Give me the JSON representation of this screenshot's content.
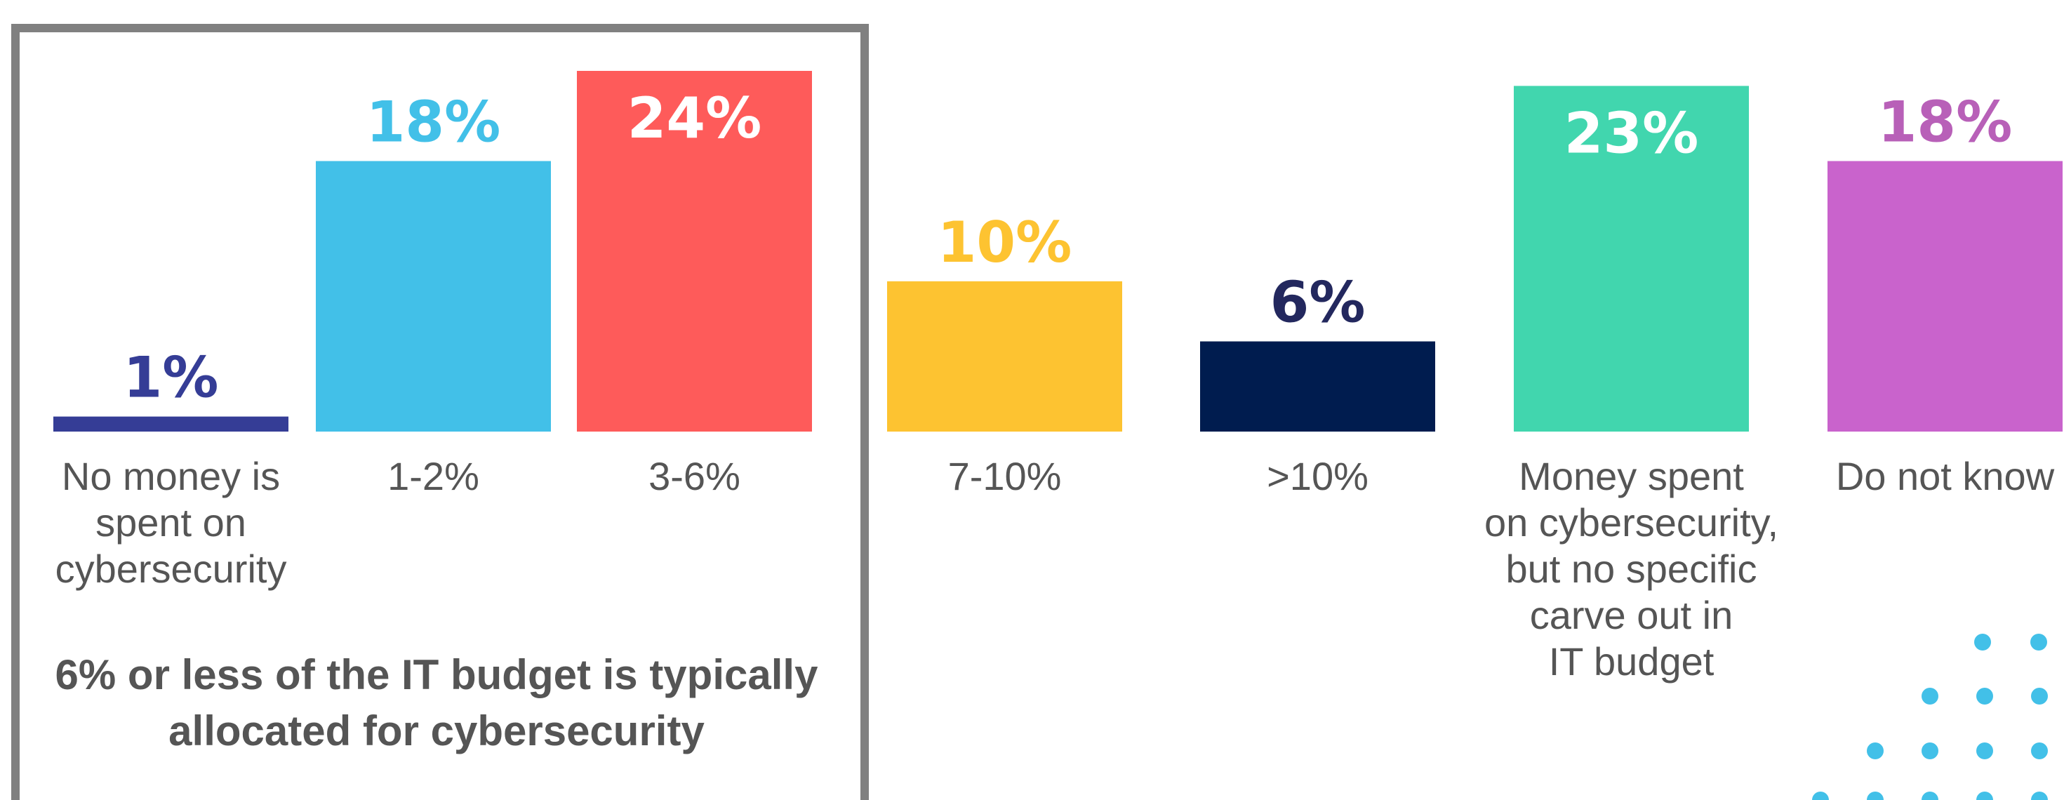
{
  "chart_data": {
    "type": "bar",
    "categories": [
      "No money is spent on cybersecurity",
      "1-2%",
      "3-6%",
      "7-10%",
      ">10%",
      "Money spent on cybersecurity, but no specific carve out in IT budget",
      "Do not know"
    ],
    "category_lines": [
      [
        "No money is",
        "spent on",
        "cybersecurity"
      ],
      [
        "1-2%"
      ],
      [
        "3-6%"
      ],
      [
        "7-10%"
      ],
      [
        ">10%"
      ],
      [
        "Money spent",
        "on cybersecurity,",
        "but no specific",
        "carve out in",
        "IT budget"
      ],
      [
        "Do not know"
      ]
    ],
    "values": [
      1,
      18,
      24,
      10,
      6,
      23,
      18
    ],
    "data_labels": [
      "1%",
      "18%",
      "24%",
      "10%",
      "6%",
      "23%",
      "18%"
    ],
    "colors": [
      "#353d96",
      "#42c0e8",
      "#fe5b5a",
      "#fdc331",
      "#001c4f",
      "#41d6ae",
      "#c963cc"
    ],
    "label_colors": [
      "#353d96",
      "#42c0e8",
      "#ffffff",
      "#fdc331",
      "#23285e",
      "#ffffff",
      "#b860b8"
    ],
    "label_inside": [
      false,
      false,
      true,
      false,
      false,
      true,
      false
    ],
    "ylim": [
      0,
      24
    ],
    "grid": false,
    "legend": "none",
    "callout": {
      "lines": [
        "6% or less of the IT budget is typically",
        "allocated for cybersecurity"
      ]
    },
    "highlight_box_color": "#808080",
    "dot_color": "#42c0e8"
  }
}
